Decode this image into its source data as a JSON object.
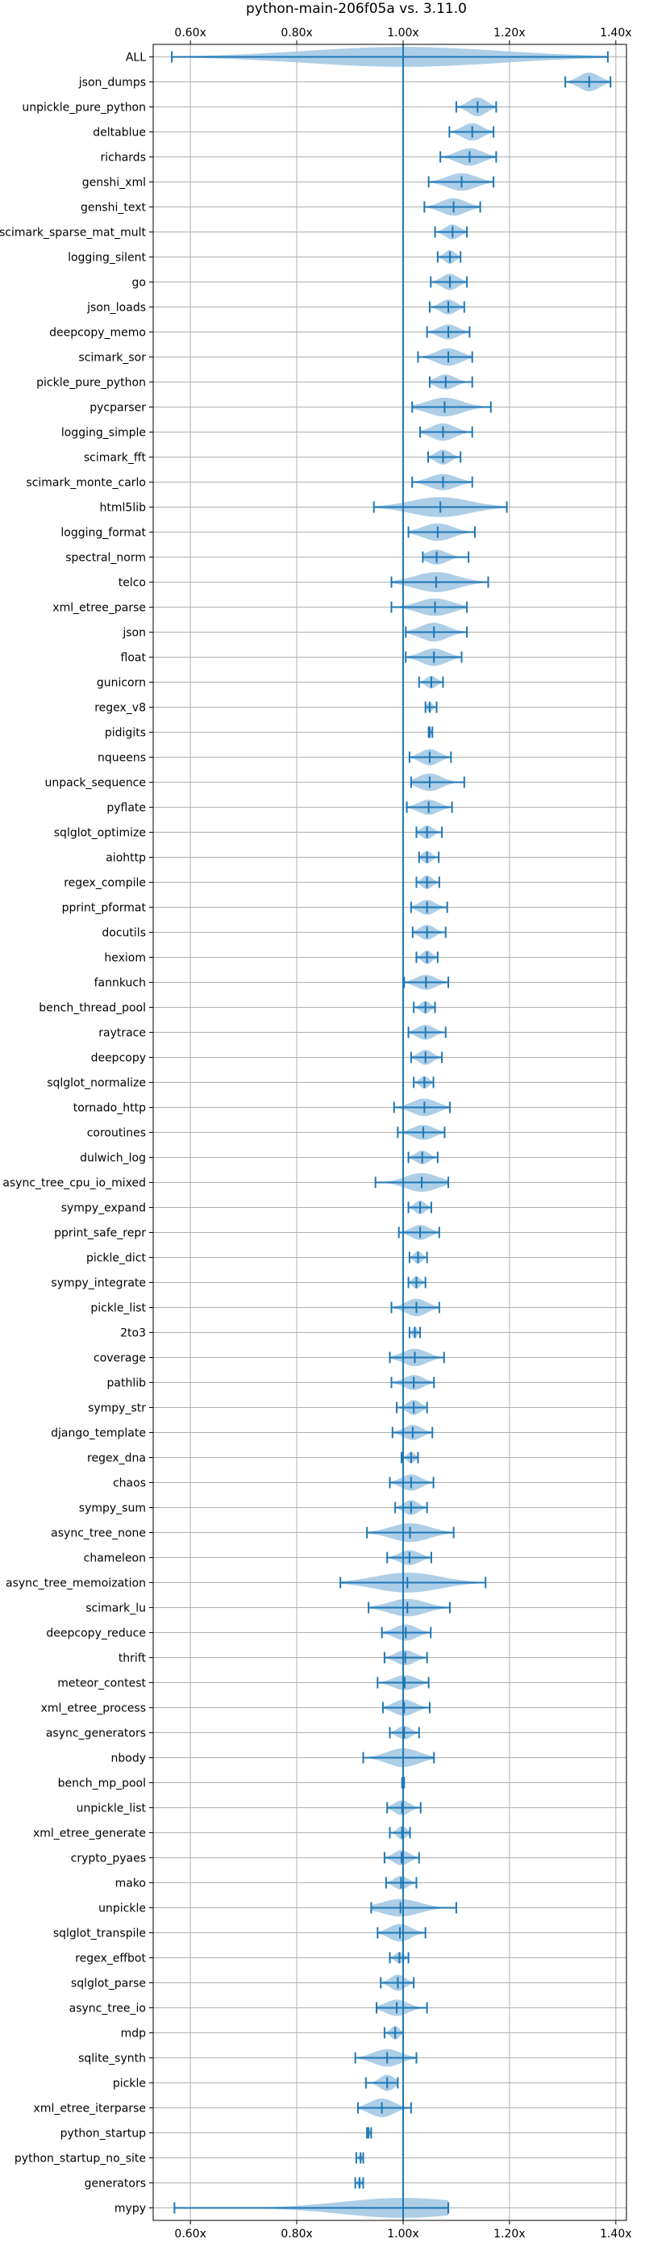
{
  "chart_data": {
    "type": "violin",
    "title": "python-main-206f05a vs. 3.11.0",
    "orientation": "horizontal",
    "xlim": [
      0.53,
      1.42
    ],
    "x_ticks": [
      0.6,
      0.8,
      1.0,
      1.2,
      1.4
    ],
    "x_tick_labels": [
      "0.60x",
      "0.80x",
      "1.00x",
      "1.20x",
      "1.40x"
    ],
    "x_tick_positions": [
      "top",
      "bottom"
    ],
    "reference_line": 1.0,
    "grid": true,
    "colors": {
      "violin": "#1f77b4",
      "violin_fill": "#9fc5e3",
      "grid": "#b0b0b0",
      "reference": "#1f77b4"
    },
    "categories": [
      "ALL",
      "json_dumps",
      "unpickle_pure_python",
      "deltablue",
      "richards",
      "genshi_xml",
      "genshi_text",
      "scimark_sparse_mat_mult",
      "logging_silent",
      "go",
      "json_loads",
      "deepcopy_memo",
      "scimark_sor",
      "pickle_pure_python",
      "pycparser",
      "logging_simple",
      "scimark_fft",
      "scimark_monte_carlo",
      "html5lib",
      "logging_format",
      "spectral_norm",
      "telco",
      "xml_etree_parse",
      "json",
      "float",
      "gunicorn",
      "regex_v8",
      "pidigits",
      "nqueens",
      "unpack_sequence",
      "pyflate",
      "sqlglot_optimize",
      "aiohttp",
      "regex_compile",
      "pprint_pformat",
      "docutils",
      "hexiom",
      "fannkuch",
      "bench_thread_pool",
      "raytrace",
      "deepcopy",
      "sqlglot_normalize",
      "tornado_http",
      "coroutines",
      "dulwich_log",
      "async_tree_cpu_io_mixed",
      "sympy_expand",
      "pprint_safe_repr",
      "pickle_dict",
      "sympy_integrate",
      "pickle_list",
      "2to3",
      "coverage",
      "pathlib",
      "sympy_str",
      "django_template",
      "regex_dna",
      "chaos",
      "sympy_sum",
      "async_tree_none",
      "chameleon",
      "async_tree_memoization",
      "scimark_lu",
      "deepcopy_reduce",
      "thrift",
      "meteor_contest",
      "xml_etree_process",
      "async_generators",
      "nbody",
      "bench_mp_pool",
      "unpickle_list",
      "xml_etree_generate",
      "crypto_pyaes",
      "mako",
      "unpickle",
      "sqlglot_transpile",
      "regex_effbot",
      "sqlglot_parse",
      "async_tree_io",
      "mdp",
      "sqlite_synth",
      "pickle",
      "xml_etree_iterparse",
      "python_startup",
      "python_startup_no_site",
      "generators",
      "mypy"
    ],
    "mins": [
      0.565,
      1.305,
      1.1,
      1.087,
      1.07,
      1.048,
      1.04,
      1.06,
      1.065,
      1.052,
      1.05,
      1.045,
      1.028,
      1.05,
      1.017,
      1.032,
      1.047,
      1.017,
      0.945,
      1.01,
      1.037,
      0.978,
      0.978,
      1.005,
      1.005,
      1.03,
      1.042,
      1.048,
      1.012,
      1.015,
      1.007,
      1.025,
      1.03,
      1.025,
      1.015,
      1.018,
      1.025,
      1.002,
      1.02,
      1.01,
      1.015,
      1.02,
      0.983,
      0.99,
      1.01,
      0.948,
      1.01,
      0.992,
      1.012,
      1.01,
      0.978,
      1.012,
      0.975,
      0.978,
      0.988,
      0.98,
      0.997,
      0.975,
      0.985,
      0.932,
      0.97,
      0.882,
      0.935,
      0.96,
      0.965,
      0.952,
      0.962,
      0.975,
      0.925,
      0.998,
      0.97,
      0.975,
      0.965,
      0.968,
      0.94,
      0.952,
      0.975,
      0.958,
      0.95,
      0.965,
      0.91,
      0.93,
      0.915,
      0.932,
      0.912,
      0.91,
      0.57
    ],
    "medians": [
      1.0,
      1.35,
      1.14,
      1.13,
      1.125,
      1.11,
      1.095,
      1.093,
      1.088,
      1.088,
      1.085,
      1.085,
      1.085,
      1.08,
      1.078,
      1.075,
      1.075,
      1.075,
      1.07,
      1.065,
      1.063,
      1.062,
      1.06,
      1.058,
      1.058,
      1.053,
      1.05,
      1.05,
      1.05,
      1.05,
      1.048,
      1.045,
      1.045,
      1.045,
      1.045,
      1.045,
      1.045,
      1.043,
      1.042,
      1.042,
      1.042,
      1.04,
      1.04,
      1.038,
      1.036,
      1.035,
      1.032,
      1.032,
      1.028,
      1.025,
      1.025,
      1.022,
      1.022,
      1.02,
      1.02,
      1.018,
      1.015,
      1.015,
      1.015,
      1.013,
      1.012,
      1.008,
      1.008,
      1.005,
      1.004,
      1.003,
      1.002,
      1.002,
      1.0,
      1.0,
      0.998,
      0.998,
      0.997,
      0.996,
      0.995,
      0.994,
      0.993,
      0.99,
      0.988,
      0.985,
      0.97,
      0.97,
      0.96,
      0.935,
      0.92,
      0.918,
      1.0
    ],
    "maxs": [
      1.385,
      1.39,
      1.175,
      1.17,
      1.175,
      1.17,
      1.145,
      1.12,
      1.108,
      1.12,
      1.115,
      1.125,
      1.13,
      1.13,
      1.165,
      1.13,
      1.108,
      1.13,
      1.195,
      1.135,
      1.123,
      1.16,
      1.12,
      1.12,
      1.11,
      1.075,
      1.063,
      1.055,
      1.09,
      1.115,
      1.092,
      1.073,
      1.067,
      1.068,
      1.083,
      1.08,
      1.065,
      1.085,
      1.06,
      1.08,
      1.073,
      1.057,
      1.088,
      1.078,
      1.065,
      1.085,
      1.053,
      1.068,
      1.045,
      1.042,
      1.068,
      1.032,
      1.077,
      1.058,
      1.045,
      1.055,
      1.028,
      1.057,
      1.045,
      1.095,
      1.053,
      1.155,
      1.088,
      1.052,
      1.045,
      1.048,
      1.05,
      1.03,
      1.058,
      1.002,
      1.033,
      1.013,
      1.03,
      1.025,
      1.1,
      1.042,
      1.01,
      1.02,
      1.045,
      1.0,
      1.025,
      0.99,
      1.015,
      0.94,
      0.925,
      0.925,
      1.085
    ],
    "widths": [
      0.8,
      0.75,
      0.75,
      0.7,
      0.7,
      0.7,
      0.7,
      0.6,
      0.55,
      0.65,
      0.6,
      0.6,
      0.7,
      0.6,
      0.75,
      0.7,
      0.6,
      0.65,
      0.8,
      0.7,
      0.6,
      0.8,
      0.7,
      0.75,
      0.7,
      0.5,
      0.4,
      0.3,
      0.65,
      0.7,
      0.6,
      0.55,
      0.5,
      0.55,
      0.6,
      0.6,
      0.55,
      0.6,
      0.5,
      0.6,
      0.6,
      0.5,
      0.7,
      0.6,
      0.55,
      0.75,
      0.55,
      0.6,
      0.5,
      0.5,
      0.7,
      0.45,
      0.7,
      0.6,
      0.6,
      0.6,
      0.45,
      0.65,
      0.6,
      0.75,
      0.6,
      0.8,
      0.7,
      0.65,
      0.6,
      0.6,
      0.65,
      0.55,
      0.75,
      0.2,
      0.6,
      0.55,
      0.6,
      0.55,
      0.7,
      0.7,
      0.45,
      0.65,
      0.65,
      0.55,
      0.7,
      0.65,
      0.75,
      0.3,
      0.3,
      0.4,
      0.8
    ]
  }
}
